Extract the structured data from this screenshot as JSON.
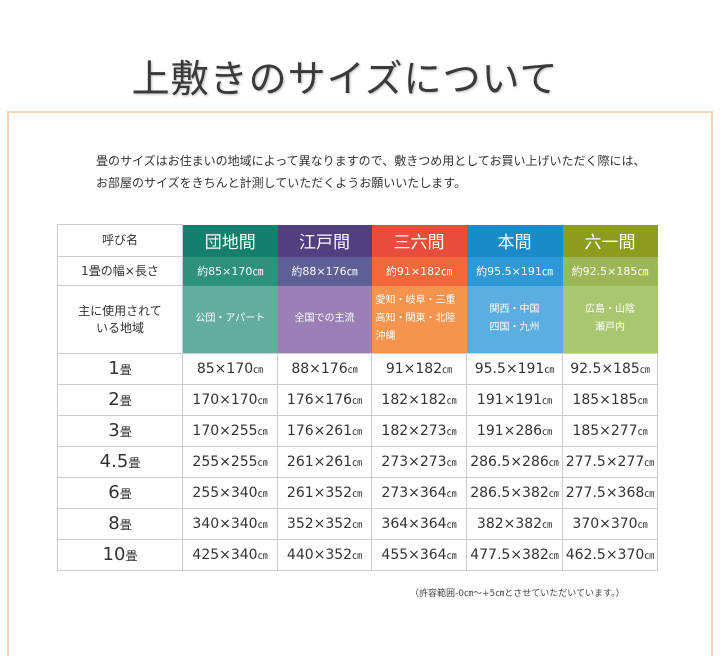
{
  "title": "上敷きのサイズについて",
  "intro": [
    "畳のサイズはお住まいの地域によって異なりますので、敷きつめ用としてお買い上げいただく際には、",
    "お部屋のサイズをきちんと計測していただくようお願いいたします。"
  ],
  "table": {
    "row_labels": {
      "name": "呼び名",
      "width": "1畳の幅×長さ",
      "region": "主に使用されて\nいる地域"
    },
    "types": [
      {
        "name": "団地間",
        "size": "約85×170㎝",
        "region": [
          "公団・アパート"
        ],
        "colors": [
          "#137f6c",
          "#2e917c",
          "#62ad9d"
        ]
      },
      {
        "name": "江戸間",
        "size": "約88×176㎝",
        "region": [
          "全国での主流"
        ],
        "colors": [
          "#523f80",
          "#5d5f96",
          "#9a80b4"
        ]
      },
      {
        "name": "三六間",
        "size": "約91×182㎝",
        "region": [
          "愛知・岐阜・三重",
          "高知・関東・北陸",
          "沖縄"
        ],
        "colors": [
          "#e84c3d",
          "#f1683c",
          "#f5944f"
        ]
      },
      {
        "name": "本間",
        "size": "約95.5×191㎝",
        "region": [
          "関西・中国",
          "四国・九州"
        ],
        "colors": [
          "#1b8ac8",
          "#2e99d6",
          "#5cade0"
        ]
      },
      {
        "name": "六一間",
        "size": "約92.5×185㎝",
        "region": [
          "広島・山陰",
          "瀬戸内"
        ],
        "colors": [
          "#8b9c1e",
          "#9db758",
          "#a9c770"
        ]
      }
    ],
    "unit": "㎝",
    "jo_unit": "畳",
    "rows": [
      {
        "jo": "1",
        "sizes": [
          "85×170",
          "88×176",
          "91×182",
          "95.5×191",
          "92.5×185"
        ]
      },
      {
        "jo": "2",
        "sizes": [
          "170×170",
          "176×176",
          "182×182",
          "191×191",
          "185×185"
        ]
      },
      {
        "jo": "3",
        "sizes": [
          "170×255",
          "176×261",
          "182×273",
          "191×286",
          "185×277"
        ]
      },
      {
        "jo": "4.5",
        "sizes": [
          "255×255",
          "261×261",
          "273×273",
          "286.5×286",
          "277.5×277"
        ]
      },
      {
        "jo": "6",
        "sizes": [
          "255×340",
          "261×352",
          "273×364",
          "286.5×382",
          "277.5×368"
        ]
      },
      {
        "jo": "8",
        "sizes": [
          "340×340",
          "352×352",
          "364×364",
          "382×382",
          "370×370"
        ]
      },
      {
        "jo": "10",
        "sizes": [
          "425×340",
          "440×352",
          "455×364",
          "477.5×382",
          "462.5×370"
        ]
      }
    ]
  },
  "note": "（許容範囲-0㎝～+5㎝とさせていただいています。）"
}
